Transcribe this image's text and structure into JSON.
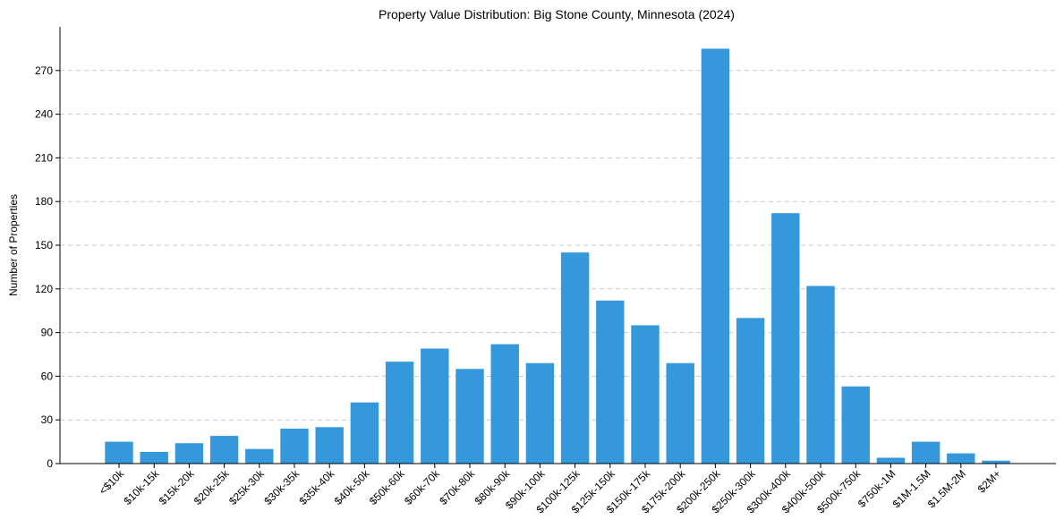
{
  "chart_data": {
    "type": "bar",
    "title": "Property Value Distribution: Big Stone County, Minnesota (2024)",
    "xlabel": "",
    "ylabel": "Number of Properties",
    "categories": [
      "<$10k",
      "$10k-15k",
      "$15k-20k",
      "$20k-25k",
      "$25k-30k",
      "$30k-35k",
      "$35k-40k",
      "$40k-50k",
      "$50k-60k",
      "$60k-70k",
      "$70k-80k",
      "$80k-90k",
      "$90k-100k",
      "$100k-125k",
      "$125k-150k",
      "$150k-175k",
      "$175k-200k",
      "$200k-250k",
      "$250k-300k",
      "$300k-400k",
      "$400k-500k",
      "$500k-750k",
      "$750k-1M",
      "$1M-1.5M",
      "$1.5M-2M",
      "$2M+"
    ],
    "values": [
      15,
      8,
      14,
      19,
      10,
      24,
      25,
      42,
      70,
      79,
      65,
      82,
      69,
      145,
      112,
      95,
      69,
      285,
      100,
      172,
      122,
      53,
      4,
      15,
      7,
      2
    ],
    "ylim": [
      0,
      300
    ],
    "yticks": [
      0,
      30,
      60,
      90,
      120,
      150,
      180,
      210,
      240,
      270
    ],
    "grid": true,
    "bar_color": "#3498db"
  }
}
